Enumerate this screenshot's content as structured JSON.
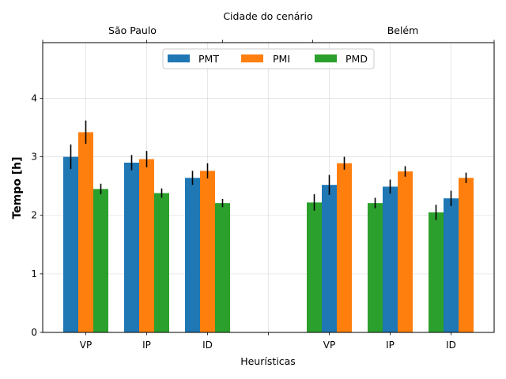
{
  "chart_data": {
    "type": "bar",
    "xlabel": "Heurísticas",
    "ylabel": "Tempo [h]",
    "top_axis_title": "Cidade do cenário",
    "groups": [
      "São Paulo",
      "Belém"
    ],
    "categories": [
      "VP",
      "IP",
      "ID",
      "",
      "VP",
      "IP",
      "ID"
    ],
    "ylim": [
      0,
      4.95
    ],
    "yticks": [
      0,
      1,
      2,
      3,
      4
    ],
    "grid": true,
    "legend_position": "top-center",
    "series": [
      {
        "name": "PMT",
        "color": "#1f77b4",
        "values": [
          3.0,
          2.9,
          2.64,
          null,
          2.52,
          2.49,
          2.29
        ],
        "errors": [
          0.21,
          0.13,
          0.12,
          null,
          0.17,
          0.12,
          0.13
        ]
      },
      {
        "name": "PMI",
        "color": "#ff7f0e",
        "values": [
          3.42,
          2.96,
          2.76,
          null,
          2.89,
          2.75,
          2.64
        ],
        "errors": [
          0.2,
          0.14,
          0.13,
          null,
          0.11,
          0.09,
          0.09
        ]
      },
      {
        "name": "PMD",
        "color": "#2ca02c",
        "values": [
          2.45,
          2.38,
          2.21,
          null,
          2.22,
          2.21,
          2.05
        ],
        "errors": [
          0.09,
          0.08,
          0.07,
          null,
          0.14,
          0.09,
          0.13
        ]
      }
    ],
    "bar_order": [
      [
        "PMT",
        "PMI",
        "PMD"
      ],
      [
        "PMT",
        "PMI",
        "PMD"
      ],
      [
        "PMT",
        "PMI",
        "PMD"
      ],
      [],
      [
        "PMD",
        "PMT",
        "PMI"
      ],
      [
        "PMD",
        "PMT",
        "PMI"
      ],
      [
        "PMD",
        "PMT",
        "PMI"
      ]
    ]
  }
}
